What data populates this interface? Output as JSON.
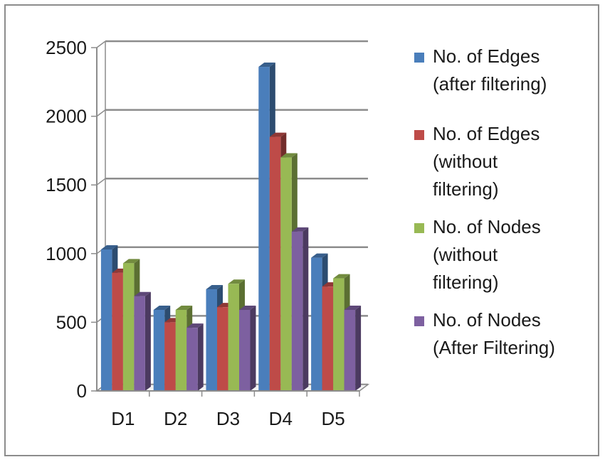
{
  "chart_data": {
    "type": "bar",
    "title": "",
    "xlabel": "",
    "ylabel": "",
    "categories": [
      "D1",
      "D2",
      "D3",
      "D4",
      "D5"
    ],
    "ylim": [
      0,
      2500
    ],
    "yticks": [
      0,
      500,
      1000,
      1500,
      2000,
      2500
    ],
    "ytick_labels": [
      "0",
      "500",
      "1000",
      "1500",
      "2000",
      "2500"
    ],
    "grid": true,
    "legend_position": "right",
    "series": [
      {
        "name": "No. of Edges (after filtering)",
        "label_lines": [
          "No. of Edges",
          "(after filtering)"
        ],
        "color": "#4a7ebb",
        "values": [
          1030,
          590,
          740,
          2360,
          970
        ]
      },
      {
        "name": "No. of Edges (without filtering)",
        "label_lines": [
          "No. of Edges",
          "(without",
          "filtering)"
        ],
        "color": "#be4b48",
        "values": [
          860,
          500,
          610,
          1850,
          760
        ]
      },
      {
        "name": "No. of Nodes (without filtering)",
        "label_lines": [
          "No. of Nodes",
          "(without",
          "filtering)"
        ],
        "color": "#98b954",
        "values": [
          930,
          590,
          780,
          1700,
          820
        ]
      },
      {
        "name": "No. of Nodes (After Filtering)",
        "label_lines": [
          "No. of Nodes",
          "(After Filtering)"
        ],
        "color": "#7d60a0",
        "values": [
          690,
          460,
          590,
          1160,
          590
        ]
      }
    ]
  }
}
